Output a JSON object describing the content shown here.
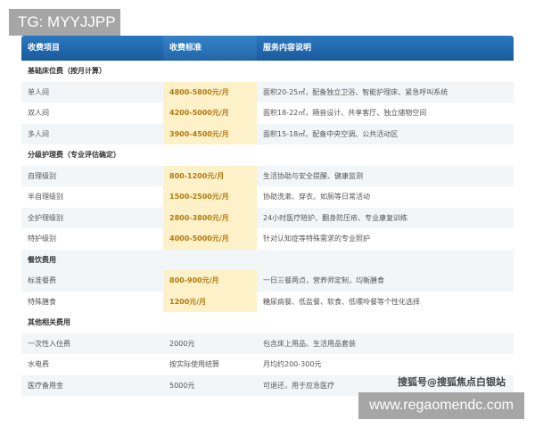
{
  "badge": "TG: MYYJJPP",
  "headers": [
    "收费项目",
    "收费标准",
    "服务内容说明"
  ],
  "sections": [
    {
      "title": "基础床位费（按月计算）",
      "rows": [
        [
          "单人间",
          "4800-5800元/月",
          "面积20-25㎡，配备独立卫浴、智能护理床、紧急呼叫系统"
        ],
        [
          "双人间",
          "4200-5000元/月",
          "面积18-22㎡，隔音设计、共享客厅、独立储物空间"
        ],
        [
          "多人间",
          "3900-4500元/月",
          "面积15-18㎡，配备中央空调、公共活动区"
        ]
      ]
    },
    {
      "title": "分级护理费（专业评估确定）",
      "rows": [
        [
          "自理级别",
          "800-1200元/月",
          "生活协助与安全提醒、健康监测"
        ],
        [
          "半自理级别",
          "1500-2500元/月",
          "协助洗漱、穿衣、如厕等日常活动"
        ],
        [
          "全护理级别",
          "2800-3800元/月",
          "24小时医疗陪护、翻身防压疮、专业康复训练"
        ],
        [
          "特护级别",
          "4000-5000元/月",
          "针对认知症等特殊需求的专业照护"
        ]
      ]
    },
    {
      "title": "餐饮费用",
      "rows": [
        [
          "标准餐费",
          "800-900元/月",
          "一日三餐两点，营养师定制，均衡膳食"
        ],
        [
          "特殊膳食",
          "1200元/月",
          "糖尿病餐、低盐餐、软食、低嘌呤餐等个性化选择"
        ]
      ]
    },
    {
      "title": "其他相关费用",
      "rows": [
        [
          "一次性入住费",
          "2000元",
          "包含床上用品、生活用品套装"
        ],
        [
          "水电费",
          "按实际使用结算",
          "月均约200-300元"
        ],
        [
          "医疗备用金",
          "5000元",
          "可退还，用于应急医疗"
        ]
      ]
    }
  ],
  "watermark_text": "搜狐号@搜狐焦点白银站",
  "watermark_url": "www.regaomendc.com"
}
